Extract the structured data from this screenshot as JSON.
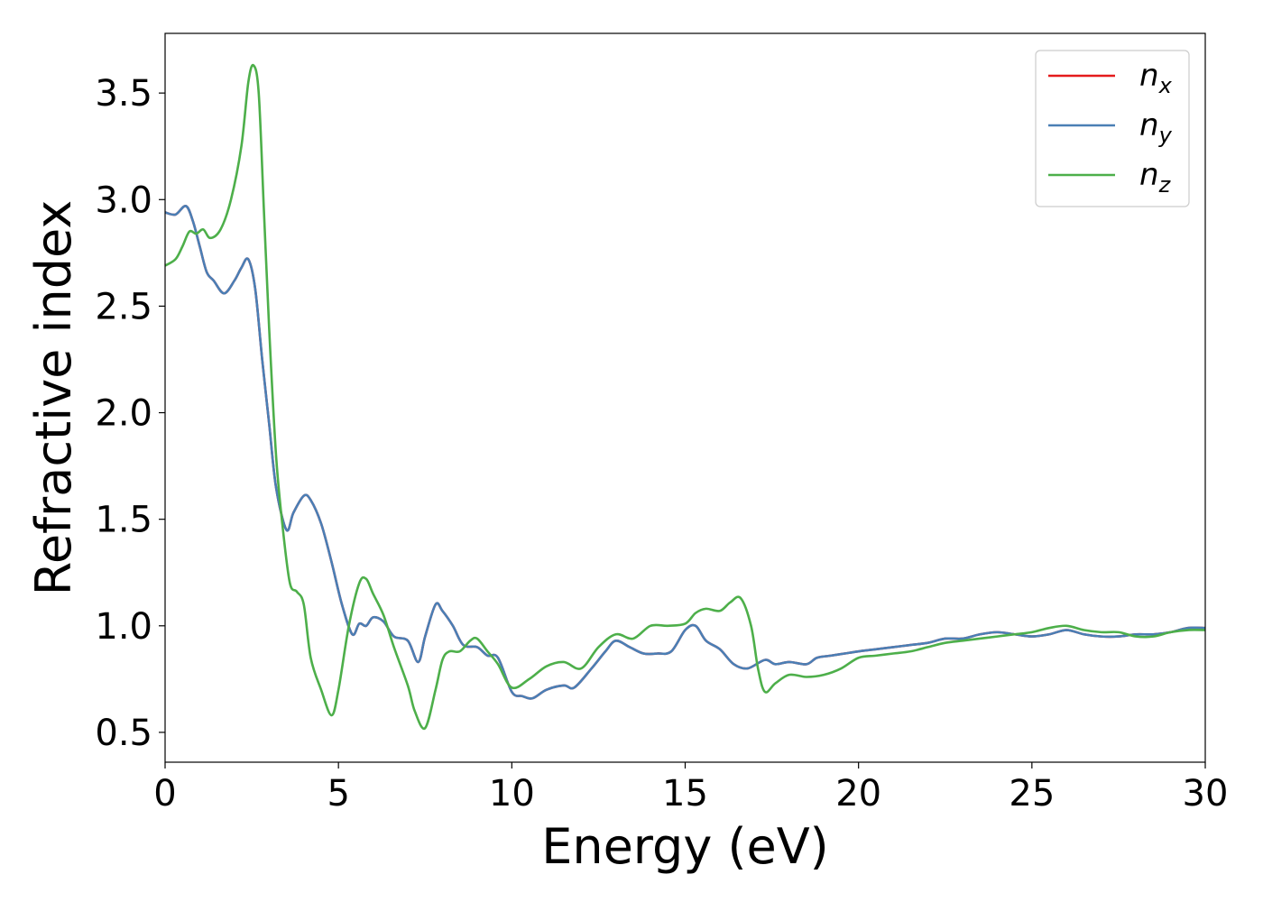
{
  "chart_data": {
    "type": "line",
    "title": "",
    "xlabel": "Energy (eV)",
    "ylabel": "Refractive index",
    "xlim": [
      0,
      30
    ],
    "ylim": [
      0.36,
      3.78
    ],
    "xticks": [
      0,
      5,
      10,
      15,
      20,
      25,
      30
    ],
    "xtick_labels": [
      "0",
      "5",
      "10",
      "15",
      "20",
      "25",
      "30"
    ],
    "yticks": [
      0.5,
      1.0,
      1.5,
      2.0,
      2.5,
      3.0,
      3.5
    ],
    "ytick_labels": [
      "0.5",
      "1.0",
      "1.5",
      "2.0",
      "2.5",
      "3.0",
      "3.5"
    ],
    "grid": false,
    "legend_position": "top-right",
    "series": [
      {
        "name": "n_x",
        "legend_base": "n",
        "legend_sub": "x",
        "color": "#e41a1c",
        "x": [
          0,
          0.3,
          0.6,
          0.8,
          1.0,
          1.2,
          1.4,
          1.7,
          2.0,
          2.2,
          2.4,
          2.6,
          2.8,
          3.0,
          3.2,
          3.5,
          3.7,
          4.0,
          4.2,
          4.5,
          4.8,
          5.1,
          5.4,
          5.6,
          5.8,
          6.0,
          6.3,
          6.6,
          7.0,
          7.3,
          7.5,
          7.8,
          8.0,
          8.3,
          8.6,
          9.0,
          9.3,
          9.6,
          10.0,
          10.3,
          10.6,
          11.0,
          11.5,
          11.8,
          12.3,
          12.7,
          13.0,
          13.4,
          13.8,
          14.2,
          14.6,
          15.0,
          15.3,
          15.6,
          16.0,
          16.4,
          16.8,
          17.3,
          17.6,
          18.0,
          18.5,
          18.8,
          19.2,
          19.6,
          20.0,
          20.5,
          21.0,
          21.5,
          22.0,
          22.5,
          23.0,
          23.5,
          24.0,
          24.5,
          25.0,
          25.5,
          26.0,
          26.5,
          27.0,
          27.5,
          28.0,
          28.5,
          29.0,
          29.5,
          30.0
        ],
        "y": [
          2.94,
          2.93,
          2.97,
          2.9,
          2.78,
          2.66,
          2.62,
          2.56,
          2.62,
          2.68,
          2.72,
          2.58,
          2.25,
          1.95,
          1.65,
          1.45,
          1.53,
          1.61,
          1.59,
          1.48,
          1.3,
          1.1,
          0.96,
          1.01,
          1.0,
          1.04,
          1.02,
          0.95,
          0.93,
          0.83,
          0.95,
          1.1,
          1.07,
          1.0,
          0.91,
          0.9,
          0.86,
          0.85,
          0.69,
          0.67,
          0.66,
          0.7,
          0.72,
          0.71,
          0.8,
          0.88,
          0.93,
          0.9,
          0.87,
          0.87,
          0.88,
          0.98,
          1.0,
          0.93,
          0.89,
          0.82,
          0.8,
          0.84,
          0.82,
          0.83,
          0.82,
          0.85,
          0.86,
          0.87,
          0.88,
          0.89,
          0.9,
          0.91,
          0.92,
          0.94,
          0.94,
          0.96,
          0.97,
          0.96,
          0.95,
          0.96,
          0.98,
          0.96,
          0.95,
          0.95,
          0.96,
          0.96,
          0.97,
          0.99,
          0.99
        ]
      },
      {
        "name": "n_y",
        "legend_base": "n",
        "legend_sub": "y",
        "color": "#4a7fb5",
        "x": [
          0,
          0.3,
          0.6,
          0.8,
          1.0,
          1.2,
          1.4,
          1.7,
          2.0,
          2.2,
          2.4,
          2.6,
          2.8,
          3.0,
          3.2,
          3.5,
          3.7,
          4.0,
          4.2,
          4.5,
          4.8,
          5.1,
          5.4,
          5.6,
          5.8,
          6.0,
          6.3,
          6.6,
          7.0,
          7.3,
          7.5,
          7.8,
          8.0,
          8.3,
          8.6,
          9.0,
          9.3,
          9.6,
          10.0,
          10.3,
          10.6,
          11.0,
          11.5,
          11.8,
          12.3,
          12.7,
          13.0,
          13.4,
          13.8,
          14.2,
          14.6,
          15.0,
          15.3,
          15.6,
          16.0,
          16.4,
          16.8,
          17.3,
          17.6,
          18.0,
          18.5,
          18.8,
          19.2,
          19.6,
          20.0,
          20.5,
          21.0,
          21.5,
          22.0,
          22.5,
          23.0,
          23.5,
          24.0,
          24.5,
          25.0,
          25.5,
          26.0,
          26.5,
          27.0,
          27.5,
          28.0,
          28.5,
          29.0,
          29.5,
          30.0
        ],
        "y": [
          2.94,
          2.93,
          2.97,
          2.9,
          2.78,
          2.66,
          2.62,
          2.56,
          2.62,
          2.68,
          2.72,
          2.58,
          2.25,
          1.95,
          1.65,
          1.45,
          1.53,
          1.61,
          1.59,
          1.48,
          1.3,
          1.1,
          0.96,
          1.01,
          1.0,
          1.04,
          1.02,
          0.95,
          0.93,
          0.83,
          0.95,
          1.1,
          1.07,
          1.0,
          0.91,
          0.9,
          0.86,
          0.85,
          0.69,
          0.67,
          0.66,
          0.7,
          0.72,
          0.71,
          0.8,
          0.88,
          0.93,
          0.9,
          0.87,
          0.87,
          0.88,
          0.98,
          1.0,
          0.93,
          0.89,
          0.82,
          0.8,
          0.84,
          0.82,
          0.83,
          0.82,
          0.85,
          0.86,
          0.87,
          0.88,
          0.89,
          0.9,
          0.91,
          0.92,
          0.94,
          0.94,
          0.96,
          0.97,
          0.96,
          0.95,
          0.96,
          0.98,
          0.96,
          0.95,
          0.95,
          0.96,
          0.96,
          0.97,
          0.99,
          0.99
        ]
      },
      {
        "name": "n_z",
        "legend_base": "n",
        "legend_sub": "z",
        "color": "#4daf4a",
        "x": [
          0,
          0.3,
          0.5,
          0.7,
          0.9,
          1.1,
          1.3,
          1.6,
          1.9,
          2.2,
          2.4,
          2.55,
          2.7,
          2.85,
          3.0,
          3.2,
          3.4,
          3.6,
          3.8,
          4.0,
          4.2,
          4.5,
          4.8,
          5.0,
          5.3,
          5.6,
          5.8,
          6.0,
          6.3,
          6.6,
          7.0,
          7.2,
          7.5,
          7.8,
          8.0,
          8.2,
          8.5,
          8.8,
          9.0,
          9.3,
          9.6,
          10.0,
          10.5,
          11.0,
          11.5,
          12.0,
          12.5,
          13.0,
          13.5,
          14.0,
          14.5,
          15.0,
          15.3,
          15.6,
          16.0,
          16.3,
          16.6,
          16.9,
          17.1,
          17.3,
          17.6,
          18.0,
          18.5,
          19.0,
          19.5,
          20.0,
          20.5,
          21.0,
          21.5,
          22.0,
          22.5,
          23.0,
          23.5,
          24.0,
          24.5,
          25.0,
          25.5,
          26.0,
          26.5,
          27.0,
          27.5,
          28.0,
          28.5,
          29.0,
          29.5,
          30.0
        ],
        "y": [
          2.69,
          2.72,
          2.78,
          2.85,
          2.84,
          2.86,
          2.82,
          2.86,
          3.0,
          3.25,
          3.55,
          3.63,
          3.5,
          2.95,
          2.4,
          1.8,
          1.45,
          1.2,
          1.16,
          1.1,
          0.85,
          0.7,
          0.58,
          0.7,
          1.0,
          1.2,
          1.22,
          1.15,
          1.05,
          0.9,
          0.72,
          0.6,
          0.52,
          0.7,
          0.84,
          0.88,
          0.88,
          0.93,
          0.94,
          0.88,
          0.82,
          0.71,
          0.75,
          0.81,
          0.83,
          0.8,
          0.9,
          0.96,
          0.94,
          1.0,
          1.0,
          1.01,
          1.06,
          1.08,
          1.07,
          1.11,
          1.13,
          1.0,
          0.8,
          0.69,
          0.73,
          0.77,
          0.76,
          0.77,
          0.8,
          0.85,
          0.86,
          0.87,
          0.88,
          0.9,
          0.92,
          0.93,
          0.94,
          0.95,
          0.96,
          0.97,
          0.99,
          1.0,
          0.98,
          0.97,
          0.97,
          0.95,
          0.95,
          0.97,
          0.98,
          0.98
        ]
      }
    ]
  }
}
